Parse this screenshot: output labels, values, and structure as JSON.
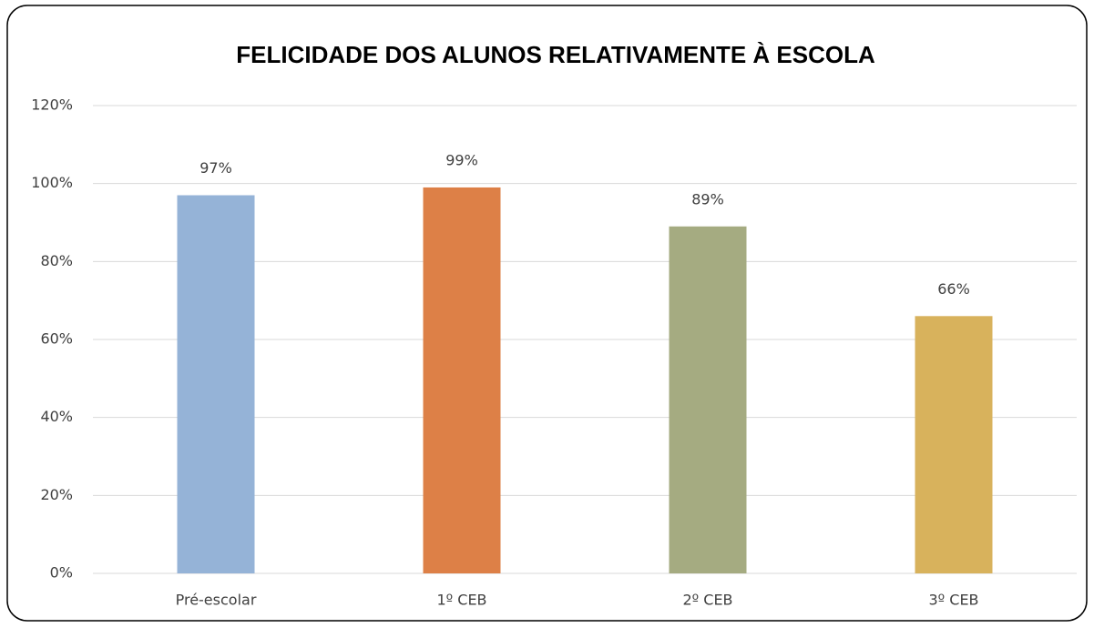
{
  "chart_data": {
    "type": "bar",
    "title": "FELICIDADE DOS ALUNOS RELATIVAMENTE À ESCOLA",
    "categories": [
      "Pré-escolar",
      "1º CEB",
      "2º CEB",
      "3º CEB"
    ],
    "values": [
      97,
      99,
      89,
      66
    ],
    "value_labels": [
      "97%",
      "99%",
      "89%",
      "66%"
    ],
    "colors": [
      "#95b3d7",
      "#dd8047",
      "#a5ab81",
      "#d8b25c"
    ],
    "ylim": [
      0,
      120
    ],
    "yticks": [
      {
        "value": 0,
        "label": "0%"
      },
      {
        "value": 20,
        "label": "20%"
      },
      {
        "value": 40,
        "label": "40%"
      },
      {
        "value": 60,
        "label": "60%"
      },
      {
        "value": 80,
        "label": "80%"
      },
      {
        "value": 100,
        "label": "100%"
      },
      {
        "value": 120,
        "label": "120%"
      }
    ],
    "grid": true
  }
}
